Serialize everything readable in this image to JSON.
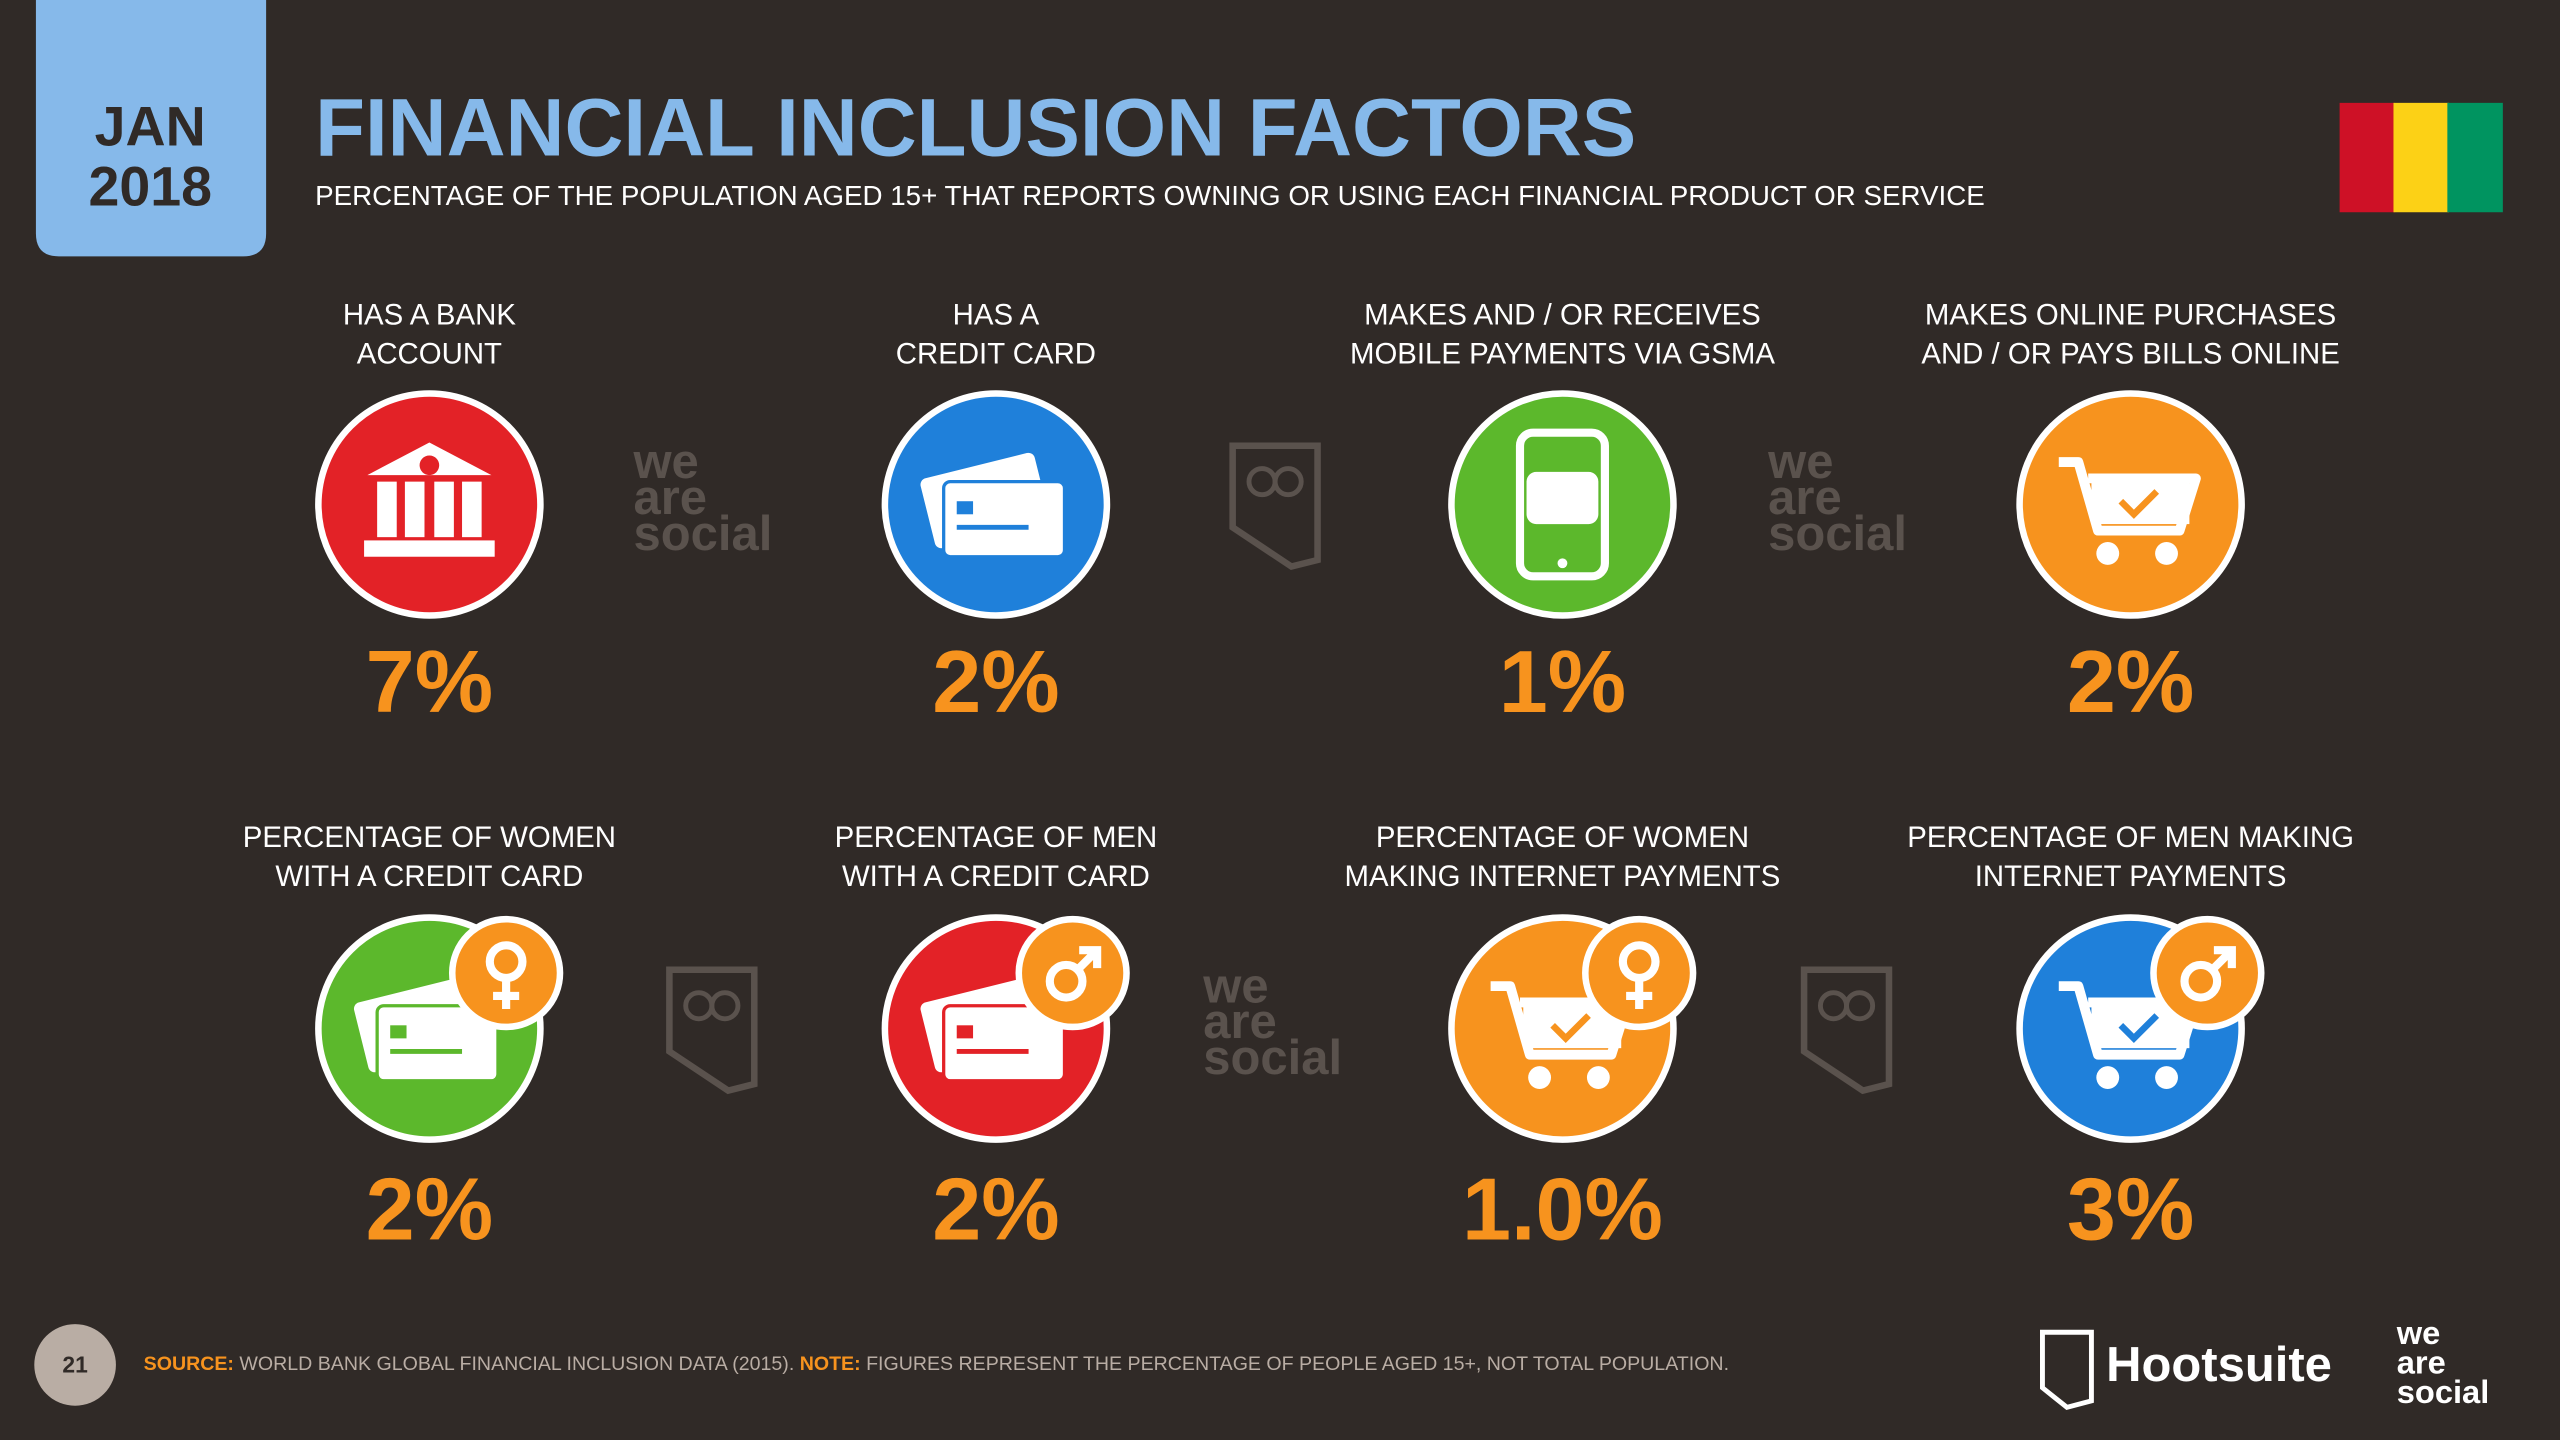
{
  "header": {
    "month": "JAN",
    "year": "2018",
    "title": "FINANCIAL INCLUSION FACTORS",
    "subtitle": "PERCENTAGE OF THE POPULATION AGED 15+ THAT REPORTS OWNING OR USING EACH FINANCIAL PRODUCT OR SERVICE"
  },
  "items": [
    {
      "label_lines": [
        "HAS A BANK",
        "ACCOUNT"
      ],
      "value": "7%"
    },
    {
      "label_lines": [
        "HAS A",
        "CREDIT CARD"
      ],
      "value": "2%"
    },
    {
      "label_lines": [
        "MAKES AND / OR RECEIVES",
        "MOBILE PAYMENTS VIA GSMA"
      ],
      "value": "1%"
    },
    {
      "label_lines": [
        "MAKES ONLINE PURCHASES",
        "AND / OR PAYS BILLS ONLINE"
      ],
      "value": "2%"
    },
    {
      "label_lines": [
        "PERCENTAGE OF WOMEN",
        "WITH A CREDIT CARD"
      ],
      "value": "2%"
    },
    {
      "label_lines": [
        "PERCENTAGE OF MEN",
        "WITH A CREDIT CARD"
      ],
      "value": "2%"
    },
    {
      "label_lines": [
        "PERCENTAGE OF WOMEN",
        "MAKING INTERNET PAYMENTS"
      ],
      "value": "1.0%"
    },
    {
      "label_lines": [
        "PERCENTAGE OF MEN MAKING",
        "INTERNET PAYMENTS"
      ],
      "value": "3%"
    }
  ],
  "brand": {
    "words": [
      "we",
      "are",
      "social"
    ],
    "hootsuite": "Hootsuite"
  },
  "footer": {
    "page": "21",
    "source_label": "SOURCE:",
    "source": "WORLD BANK GLOBAL FINANCIAL INCLUSION DATA (2015).",
    "note_label": "NOTE:",
    "note": "FIGURES REPRESENT THE PERCENTAGE OF PEOPLE AGED 15+, NOT TOTAL POPULATION."
  }
}
